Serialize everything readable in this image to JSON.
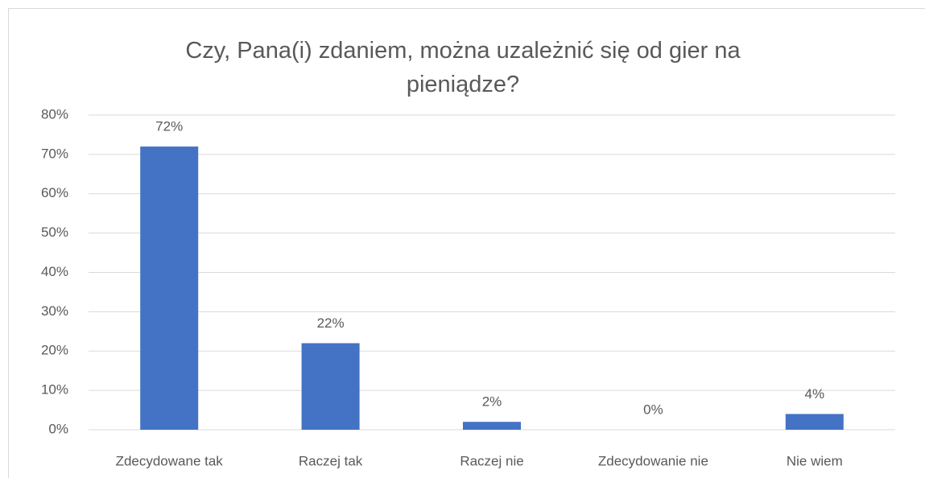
{
  "chart_data": {
    "type": "bar",
    "title": "Czy, Pana(i) zdaniem, można uzależnić się od gier na pieniądze?",
    "categories": [
      "Zdecydowane tak",
      "Raczej tak",
      "Raczej nie",
      "Zdecydowanie nie",
      "Nie wiem"
    ],
    "values": [
      72,
      22,
      2,
      0,
      4
    ],
    "value_labels": [
      "72%",
      "22%",
      "2%",
      "0%",
      "4%"
    ],
    "color": "#4472c4",
    "ylim": [
      0,
      80
    ],
    "yticks": [
      {
        "value": 0,
        "label": "0%"
      },
      {
        "value": 10,
        "label": "10%"
      },
      {
        "value": 20,
        "label": "20%"
      },
      {
        "value": 30,
        "label": "30%"
      },
      {
        "value": 40,
        "label": "40%"
      },
      {
        "value": 50,
        "label": "50%"
      },
      {
        "value": 60,
        "label": "60%"
      },
      {
        "value": 70,
        "label": "70%"
      },
      {
        "value": 80,
        "label": "80%"
      }
    ],
    "grid": true
  }
}
